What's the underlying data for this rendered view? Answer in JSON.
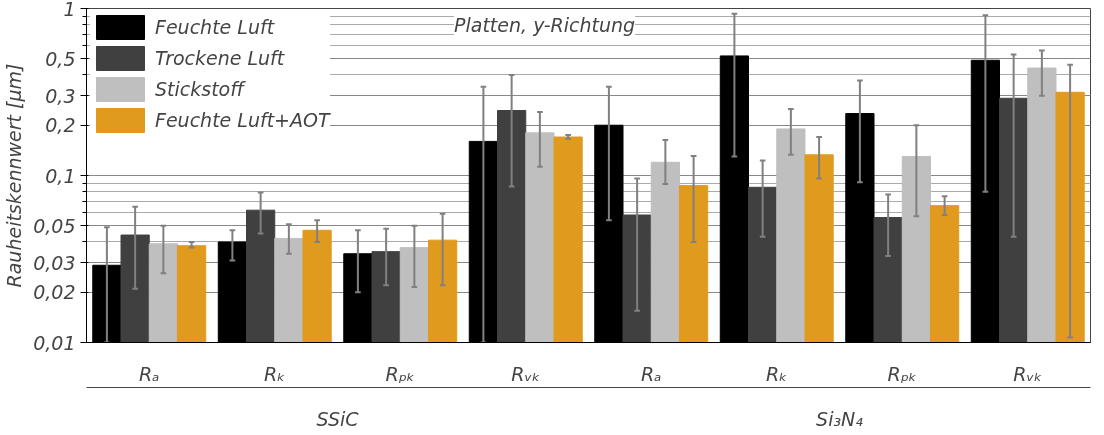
{
  "chart_data": {
    "type": "bar",
    "ylabel": "Rauheitskennwert [µm]",
    "annotations": [
      "Platten, y-Richtung",
      "SSiC",
      "Si₃N₄"
    ],
    "categories": [
      "Rₐ",
      "Rₖ",
      "Rₚₖ",
      "Rᵥₖ",
      "Rₐ",
      "Rₖ",
      "Rₚₖ",
      "Rᵥₖ"
    ],
    "series": [
      {
        "name": "Feuchte Luft",
        "color": "#000000",
        "values": [
          0.029,
          0.04,
          0.034,
          0.16,
          0.2,
          0.52,
          0.235,
          0.49
        ],
        "errors": [
          [
            0.01,
            0.049
          ],
          [
            0.031,
            0.047
          ],
          [
            0.02,
            0.047
          ],
          [
            0.01,
            0.34
          ],
          [
            0.054,
            0.34
          ],
          [
            0.13,
            0.93
          ],
          [
            0.091,
            0.37
          ],
          [
            0.08,
            0.91
          ]
        ]
      },
      {
        "name": "Trockene Luft",
        "color": "#404040",
        "values": [
          0.044,
          0.062,
          0.035,
          0.245,
          0.058,
          0.085,
          0.056,
          0.29
        ],
        "errors": [
          [
            0.021,
            0.065
          ],
          [
            0.045,
            0.079
          ],
          [
            0.022,
            0.048
          ],
          [
            0.086,
            0.4
          ],
          [
            0.0155,
            0.096
          ],
          [
            0.043,
            0.123
          ],
          [
            0.033,
            0.077
          ],
          [
            0.043,
            0.53
          ]
        ]
      },
      {
        "name": "Stickstoff",
        "color": "#bfbfbf",
        "values": [
          0.039,
          0.042,
          0.037,
          0.18,
          0.12,
          0.19,
          0.13,
          0.44
        ],
        "errors": [
          [
            0.026,
            0.05
          ],
          [
            0.034,
            0.051
          ],
          [
            0.0215,
            0.05
          ],
          [
            0.113,
            0.24
          ],
          [
            0.089,
            0.163
          ],
          [
            0.133,
            0.25
          ],
          [
            0.057,
            0.2
          ],
          [
            0.3,
            0.56
          ]
        ]
      },
      {
        "name": "Feuchte Luft+AOT",
        "color": "#e09b1f",
        "values": [
          0.038,
          0.047,
          0.041,
          0.17,
          0.087,
          0.133,
          0.066,
          0.315
        ],
        "errors": [
          [
            0.037,
            0.04
          ],
          [
            0.04,
            0.054
          ],
          [
            0.022,
            0.059
          ],
          [
            0.166,
            0.175
          ],
          [
            0.04,
            0.131
          ],
          [
            0.096,
            0.17
          ],
          [
            0.058,
            0.075
          ],
          [
            0.0107,
            0.46
          ]
        ]
      }
    ],
    "ylim": [
      0.01,
      1
    ],
    "log": true,
    "grid": "y",
    "legend": "top left",
    "yticks": [
      {
        "value": 0.01,
        "label": "0,01"
      },
      {
        "value": 0.02,
        "label": "0,02"
      },
      {
        "value": 0.03,
        "label": "0,03"
      },
      {
        "value": 0.05,
        "label": "0,05"
      },
      {
        "value": 0.1,
        "label": "0,1"
      },
      {
        "value": 0.2,
        "label": "0,2"
      },
      {
        "value": 0.3,
        "label": "0,3"
      },
      {
        "value": 0.5,
        "label": "0,5"
      },
      1
    ]
  }
}
